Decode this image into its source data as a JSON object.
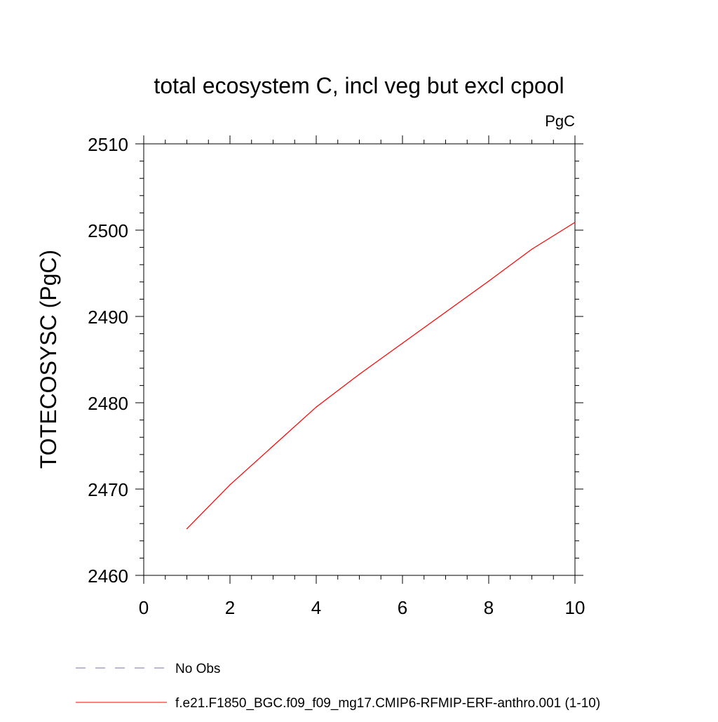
{
  "chart_data": {
    "type": "line",
    "title": "total ecosystem C, incl veg but excl cpool",
    "units_label": "PgC",
    "xlabel": "",
    "ylabel": "TOTECOSYSC  (PgC)",
    "xlim": [
      0,
      10
    ],
    "ylim": [
      2460,
      2510
    ],
    "x_ticks": [
      0,
      2,
      4,
      6,
      8,
      10
    ],
    "x_tick_labels": [
      "0",
      "2",
      "4",
      "6",
      "8",
      "10"
    ],
    "y_ticks": [
      2460,
      2470,
      2480,
      2490,
      2500,
      2510
    ],
    "y_tick_labels": [
      "2460",
      "2470",
      "2480",
      "2490",
      "2500",
      "2510"
    ],
    "grid": false,
    "legend_position": "bottom-left",
    "series": [
      {
        "name": "f.e21.F1850_BGC.f09_f09_mg17.CMIP6-RFMIP-ERF-anthro.001 (1-10)",
        "color": "#ff0000",
        "line_style": "solid",
        "x": [
          1,
          2,
          3,
          4,
          5,
          6,
          7,
          8,
          9,
          10
        ],
        "values": [
          2465.4,
          2470.5,
          2475.0,
          2479.5,
          2483.3,
          2486.9,
          2490.5,
          2494.1,
          2497.8,
          2500.9
        ]
      }
    ],
    "legend": [
      {
        "label": "No Obs",
        "color": "#7b6fb0",
        "line_style": "dashed"
      },
      {
        "label": "f.e21.F1850_BGC.f09_f09_mg17.CMIP6-RFMIP-ERF-anthro.001 (1-10)",
        "color": "#ff0000",
        "line_style": "solid"
      }
    ]
  }
}
